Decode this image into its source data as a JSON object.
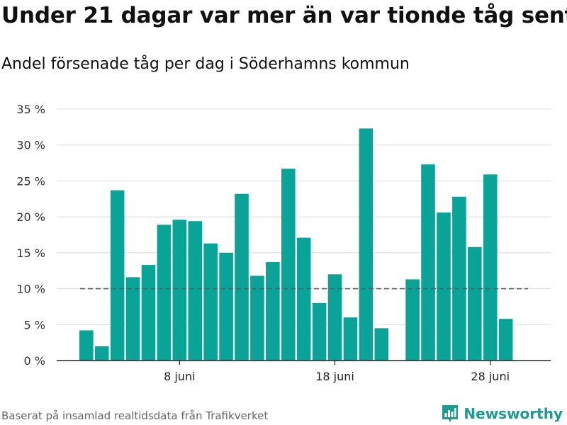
{
  "title": "Under 21 dagar var mer än var tionde tåg sent",
  "subtitle": "Andel försenade tåg per dag i Söderhamns kommun",
  "source": "Baserat på insamlad realtidsdata från Trafikverket",
  "brand": {
    "name": "Newsworthy",
    "icon": "bar-chart-logo-icon",
    "color": "#1f9a90"
  },
  "chart_data": {
    "type": "bar",
    "title": "Andel försenade tåg per dag i Söderhamns kommun",
    "xlabel": "",
    "ylabel": "",
    "unit": "%",
    "ylim": [
      0,
      35
    ],
    "yticks": [
      0,
      5,
      10,
      15,
      20,
      25,
      30,
      35
    ],
    "ytick_labels": [
      "0 %",
      "5 %",
      "10 %",
      "15 %",
      "20 %",
      "25 %",
      "30 %",
      "35 %"
    ],
    "grid": true,
    "bar_color": "#0aa398",
    "reference_line": {
      "value": 10,
      "style": "dashed",
      "color": "#5a5a68"
    },
    "xticks": [
      {
        "day": 8,
        "label": "8 juni"
      },
      {
        "day": 18,
        "label": "18 juni"
      },
      {
        "day": 28,
        "label": "28 juni"
      }
    ],
    "x": [
      2,
      3,
      4,
      5,
      6,
      7,
      8,
      9,
      10,
      11,
      12,
      13,
      14,
      15,
      16,
      17,
      18,
      19,
      20,
      21,
      22,
      23,
      24,
      25,
      26,
      27,
      28,
      29
    ],
    "values": [
      4.2,
      2.0,
      23.7,
      11.6,
      13.3,
      18.9,
      19.6,
      19.4,
      16.3,
      15.0,
      23.2,
      11.8,
      13.7,
      26.7,
      17.1,
      8.0,
      12.0,
      6.0,
      32.3,
      4.5,
      null,
      11.3,
      27.3,
      20.6,
      22.8,
      15.8,
      25.9,
      5.8
    ]
  }
}
